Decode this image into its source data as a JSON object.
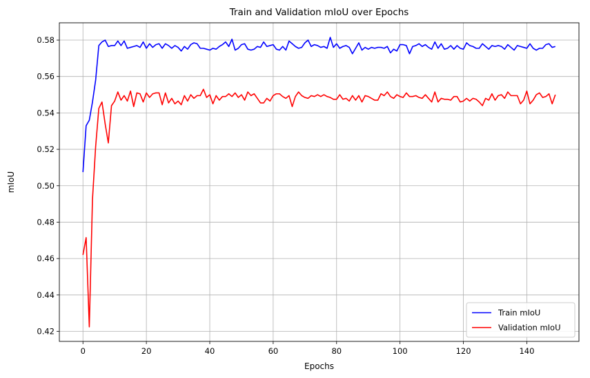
{
  "chart_data": {
    "type": "line",
    "title": "Train and Validation mIoU over Epochs",
    "xlabel": "Epochs",
    "ylabel": "mIoU",
    "xlim": [
      -7.45,
      156.45
    ],
    "ylim": [
      0.4145,
      0.5895
    ],
    "xticks": [
      0,
      20,
      40,
      60,
      80,
      100,
      120,
      140
    ],
    "yticks": [
      0.42,
      0.44,
      0.46,
      0.48,
      0.5,
      0.52,
      0.54,
      0.56,
      0.58
    ],
    "ytick_labels": [
      "0.42",
      "0.44",
      "0.46",
      "0.48",
      "0.50",
      "0.52",
      "0.54",
      "0.56",
      "0.58"
    ],
    "grid": true,
    "legend_position": "bottom-right",
    "series": [
      {
        "name": "Train mIoU",
        "color": "#0000ff",
        "x_start": 0,
        "values": [
          0.5075,
          0.533,
          0.536,
          0.546,
          0.558,
          0.577,
          0.579,
          0.58,
          0.5765,
          0.577,
          0.577,
          0.5795,
          0.577,
          0.5795,
          0.5755,
          0.576,
          0.5765,
          0.577,
          0.576,
          0.579,
          0.5755,
          0.578,
          0.576,
          0.5775,
          0.578,
          0.5755,
          0.578,
          0.577,
          0.5755,
          0.577,
          0.576,
          0.574,
          0.5765,
          0.575,
          0.5775,
          0.5785,
          0.578,
          0.5755,
          0.5755,
          0.575,
          0.5745,
          0.5755,
          0.575,
          0.5765,
          0.5775,
          0.579,
          0.5765,
          0.5805,
          0.5745,
          0.5755,
          0.5775,
          0.578,
          0.575,
          0.5745,
          0.575,
          0.5765,
          0.576,
          0.579,
          0.5765,
          0.577,
          0.5775,
          0.575,
          0.5745,
          0.5765,
          0.5745,
          0.5795,
          0.578,
          0.5765,
          0.5755,
          0.576,
          0.5785,
          0.58,
          0.5765,
          0.5775,
          0.577,
          0.576,
          0.5765,
          0.5755,
          0.5815,
          0.576,
          0.578,
          0.5755,
          0.5765,
          0.577,
          0.576,
          0.5725,
          0.5755,
          0.5785,
          0.5745,
          0.576,
          0.575,
          0.576,
          0.5755,
          0.576,
          0.576,
          0.5755,
          0.5765,
          0.573,
          0.575,
          0.574,
          0.5775,
          0.5775,
          0.577,
          0.5725,
          0.5765,
          0.577,
          0.578,
          0.5765,
          0.5775,
          0.576,
          0.575,
          0.579,
          0.5755,
          0.578,
          0.575,
          0.5755,
          0.577,
          0.575,
          0.577,
          0.5755,
          0.575,
          0.5785,
          0.577,
          0.5765,
          0.5755,
          0.5755,
          0.578,
          0.5765,
          0.575,
          0.577,
          0.5765,
          0.577,
          0.5765,
          0.575,
          0.5775,
          0.576,
          0.5745,
          0.577,
          0.5765,
          0.576,
          0.5755,
          0.578,
          0.5755,
          0.5745,
          0.5755,
          0.5755,
          0.5775,
          0.578,
          0.576,
          0.5765
        ]
      },
      {
        "name": "Validation mIoU",
        "color": "#ff0000",
        "x_start": 0,
        "values": [
          0.462,
          0.4715,
          0.4225,
          0.4925,
          0.5215,
          0.5425,
          0.546,
          0.534,
          0.5235,
          0.544,
          0.5465,
          0.5515,
          0.547,
          0.5495,
          0.5465,
          0.552,
          0.5435,
          0.551,
          0.5505,
          0.546,
          0.551,
          0.5485,
          0.5505,
          0.551,
          0.551,
          0.5445,
          0.551,
          0.5455,
          0.548,
          0.545,
          0.5465,
          0.5445,
          0.5495,
          0.5465,
          0.55,
          0.548,
          0.5495,
          0.5495,
          0.553,
          0.5485,
          0.55,
          0.545,
          0.5495,
          0.547,
          0.549,
          0.549,
          0.5505,
          0.549,
          0.551,
          0.5485,
          0.55,
          0.547,
          0.5515,
          0.5495,
          0.5505,
          0.548,
          0.5455,
          0.5455,
          0.548,
          0.5465,
          0.5495,
          0.5505,
          0.5505,
          0.549,
          0.548,
          0.5495,
          0.5435,
          0.549,
          0.5515,
          0.5495,
          0.5485,
          0.548,
          0.5495,
          0.549,
          0.55,
          0.549,
          0.55,
          0.549,
          0.5485,
          0.5475,
          0.5475,
          0.55,
          0.5475,
          0.548,
          0.5465,
          0.5495,
          0.547,
          0.5495,
          0.546,
          0.5495,
          0.549,
          0.548,
          0.547,
          0.547,
          0.5505,
          0.5495,
          0.5515,
          0.549,
          0.548,
          0.55,
          0.549,
          0.5485,
          0.551,
          0.549,
          0.549,
          0.5495,
          0.5485,
          0.548,
          0.55,
          0.548,
          0.546,
          0.5515,
          0.546,
          0.548,
          0.5475,
          0.5475,
          0.547,
          0.549,
          0.549,
          0.546,
          0.5465,
          0.548,
          0.5465,
          0.548,
          0.5475,
          0.546,
          0.544,
          0.548,
          0.547,
          0.5505,
          0.547,
          0.5495,
          0.55,
          0.548,
          0.5515,
          0.5495,
          0.5495,
          0.5495,
          0.545,
          0.547,
          0.552,
          0.545,
          0.547,
          0.55,
          0.551,
          0.5485,
          0.549,
          0.5505,
          0.545,
          0.55
        ]
      }
    ]
  }
}
